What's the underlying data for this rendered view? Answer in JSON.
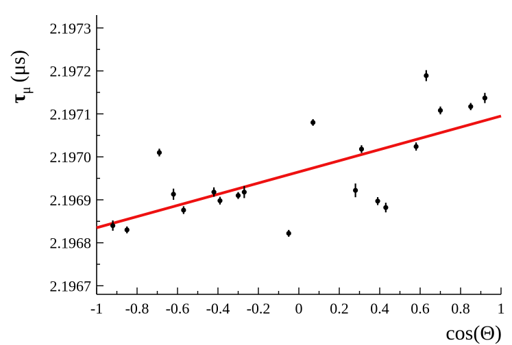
{
  "chart_data": {
    "type": "scatter",
    "title": "",
    "xlabel": "cos(Θ)",
    "ylabel_symbol": "τ",
    "ylabel_subscript": "μ",
    "ylabel_unit": "(μs)",
    "xlim": [
      -1,
      1
    ],
    "ylim": [
      2.19668,
      2.19733
    ],
    "x_ticks": [
      -1,
      -0.8,
      -0.6,
      -0.4,
      -0.2,
      0,
      0.2,
      0.4,
      0.6,
      0.8,
      1
    ],
    "x_tick_labels": [
      "-1",
      "-0.8",
      "-0.6",
      "-0.4",
      "-0.2",
      "0",
      "0.2",
      "0.4",
      "0.6",
      "0.8",
      "1"
    ],
    "y_ticks": [
      2.1967,
      2.1968,
      2.1969,
      2.197,
      2.1971,
      2.1972,
      2.1973
    ],
    "y_tick_labels": [
      "2.1967",
      "2.1968",
      "2.1969",
      "2.1970",
      "2.1971",
      "2.1972",
      "2.1973"
    ],
    "points": [
      {
        "x": -0.92,
        "y": 2.19684,
        "err": 1.2e-05
      },
      {
        "x": -0.85,
        "y": 2.19683,
        "err": 8e-06
      },
      {
        "x": -0.69,
        "y": 2.19701,
        "err": 9e-06
      },
      {
        "x": -0.62,
        "y": 2.196913,
        "err": 1.3e-05
      },
      {
        "x": -0.57,
        "y": 2.196876,
        "err": 9e-06
      },
      {
        "x": -0.42,
        "y": 2.196918,
        "err": 1.1e-05
      },
      {
        "x": -0.39,
        "y": 2.196898,
        "err": 9e-06
      },
      {
        "x": -0.3,
        "y": 2.19691,
        "err": 8e-06
      },
      {
        "x": -0.27,
        "y": 2.196918,
        "err": 1.4e-05
      },
      {
        "x": -0.05,
        "y": 2.196822,
        "err": 8e-06
      },
      {
        "x": 0.07,
        "y": 2.19708,
        "err": 7.7e-06
      },
      {
        "x": 0.28,
        "y": 2.196922,
        "err": 1.6e-05
      },
      {
        "x": 0.31,
        "y": 2.197018,
        "err": 9e-06
      },
      {
        "x": 0.39,
        "y": 2.196897,
        "err": 9.3e-06
      },
      {
        "x": 0.43,
        "y": 2.196882,
        "err": 1.12e-05
      },
      {
        "x": 0.58,
        "y": 2.197024,
        "err": 9.5e-06
      },
      {
        "x": 0.63,
        "y": 2.197189,
        "err": 1.28e-05
      },
      {
        "x": 0.7,
        "y": 2.197108,
        "err": 9.1e-06
      },
      {
        "x": 0.85,
        "y": 2.197117,
        "err": 8.4e-06
      },
      {
        "x": 0.92,
        "y": 2.197137,
        "err": 1.19e-05
      }
    ],
    "fit_line": {
      "color": "#ee1111",
      "x": [
        -1,
        1
      ],
      "y": [
        2.196835,
        2.197095
      ]
    }
  }
}
